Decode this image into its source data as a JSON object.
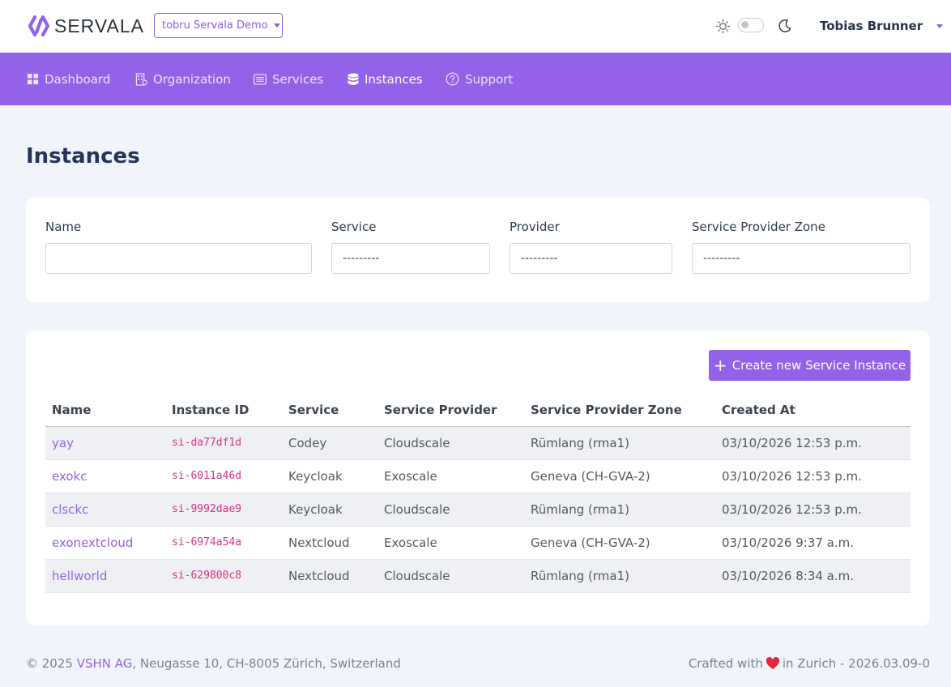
{
  "header": {
    "brand": "SERVALA",
    "org_selector": "tobru Servala Demo",
    "user_name": "Tobias Brunner"
  },
  "nav": {
    "items": [
      {
        "label": "Dashboard",
        "icon": "grid-icon"
      },
      {
        "label": "Organization",
        "icon": "building-icon"
      },
      {
        "label": "Services",
        "icon": "list-box-icon"
      },
      {
        "label": "Instances",
        "icon": "database-icon",
        "active": true
      },
      {
        "label": "Support",
        "icon": "question-circle-icon"
      }
    ]
  },
  "page": {
    "title": "Instances"
  },
  "filters": {
    "name_label": "Name",
    "name_value": "",
    "service_label": "Service",
    "service_value": "---------",
    "provider_label": "Provider",
    "provider_value": "---------",
    "zone_label": "Service Provider Zone",
    "zone_value": "---------"
  },
  "actions": {
    "create_label": "Create new Service Instance"
  },
  "table": {
    "columns": [
      "Name",
      "Instance ID",
      "Service",
      "Service Provider",
      "Service Provider Zone",
      "Created At"
    ],
    "rows": [
      [
        "yay",
        "si-da77df1d",
        "Codey",
        "Cloudscale",
        "Rümlang (rma1)",
        "03/10/2026 12:53 p.m."
      ],
      [
        "exokc",
        "si-6011a46d",
        "Keycloak",
        "Exoscale",
        "Geneva (CH-GVA-2)",
        "03/10/2026 12:53 p.m."
      ],
      [
        "clsckc",
        "si-9992dae9",
        "Keycloak",
        "Cloudscale",
        "Rümlang (rma1)",
        "03/10/2026 12:53 p.m."
      ],
      [
        "exonextcloud",
        "si-6974a54a",
        "Nextcloud",
        "Exoscale",
        "Geneva (CH-GVA-2)",
        "03/10/2026 9:37 a.m."
      ],
      [
        "hellworld",
        "si-629800c8",
        "Nextcloud",
        "Cloudscale",
        "Rümlang (rma1)",
        "03/10/2026 8:34 a.m."
      ]
    ]
  },
  "footer": {
    "copyright": "© 2025 ",
    "company": "VSHN AG",
    "address": ", Neugasse 10, CH-8005 Zürich, Switzerland",
    "crafted_prefix": "Crafted with",
    "crafted_suffix": "in Zurich - 2026.03.09-0"
  },
  "colors": {
    "accent": "#9362e9",
    "code": "#d63384",
    "heart": "#e0283a"
  }
}
